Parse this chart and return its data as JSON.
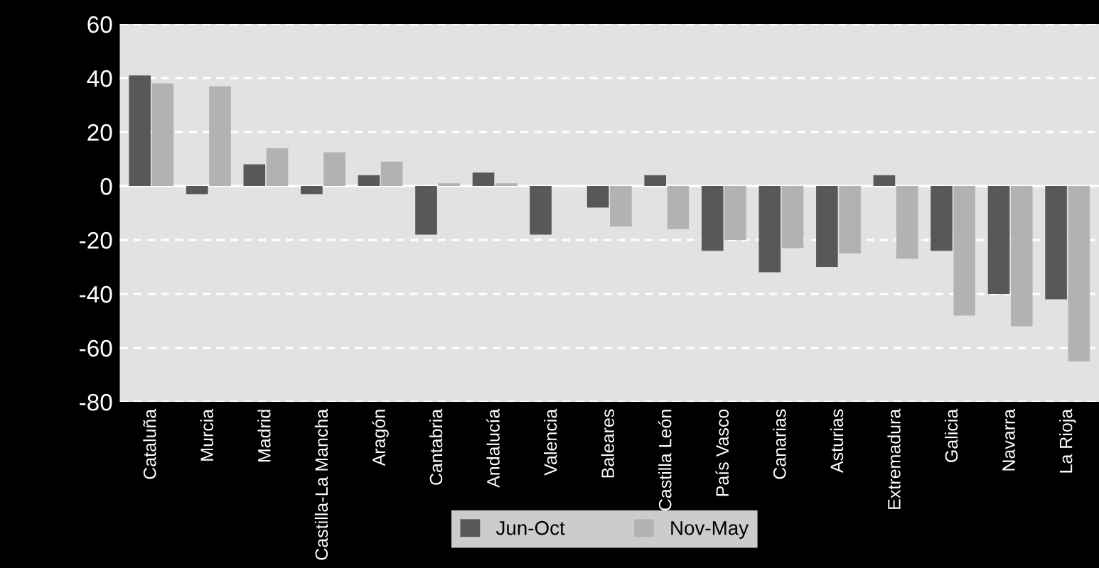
{
  "chart_data": {
    "type": "bar",
    "categories": [
      "Cataluña",
      "Murcia",
      "Madrid",
      "Castilla-La Mancha",
      "Aragón",
      "Cantabria",
      "Andalucía",
      "Valencia",
      "Baleares",
      "Castilla León",
      "País Vasco",
      "Canarias",
      "Asturias",
      "Extremadura",
      "Galicia",
      "Navarra",
      "La Rioja"
    ],
    "series": [
      {
        "name": "Jun-Oct",
        "color": "#58585a",
        "values": [
          41,
          -3,
          8,
          -3,
          4,
          -18,
          5,
          -18,
          -8,
          4,
          -24,
          -32,
          -30,
          4,
          -24,
          -40,
          -42
        ]
      },
      {
        "name": "Nov-May",
        "color": "#b2b2b2",
        "values": [
          38,
          37,
          14,
          12.5,
          9,
          1,
          1,
          null,
          -15,
          -16,
          -20,
          -23,
          -25,
          -27,
          -48,
          -52,
          -65
        ]
      }
    ],
    "ylim": [
      -80,
      60
    ],
    "yticks": [
      -80,
      -60,
      -40,
      -20,
      0,
      20,
      40,
      60
    ],
    "grid": "y",
    "legend": "bottom"
  }
}
